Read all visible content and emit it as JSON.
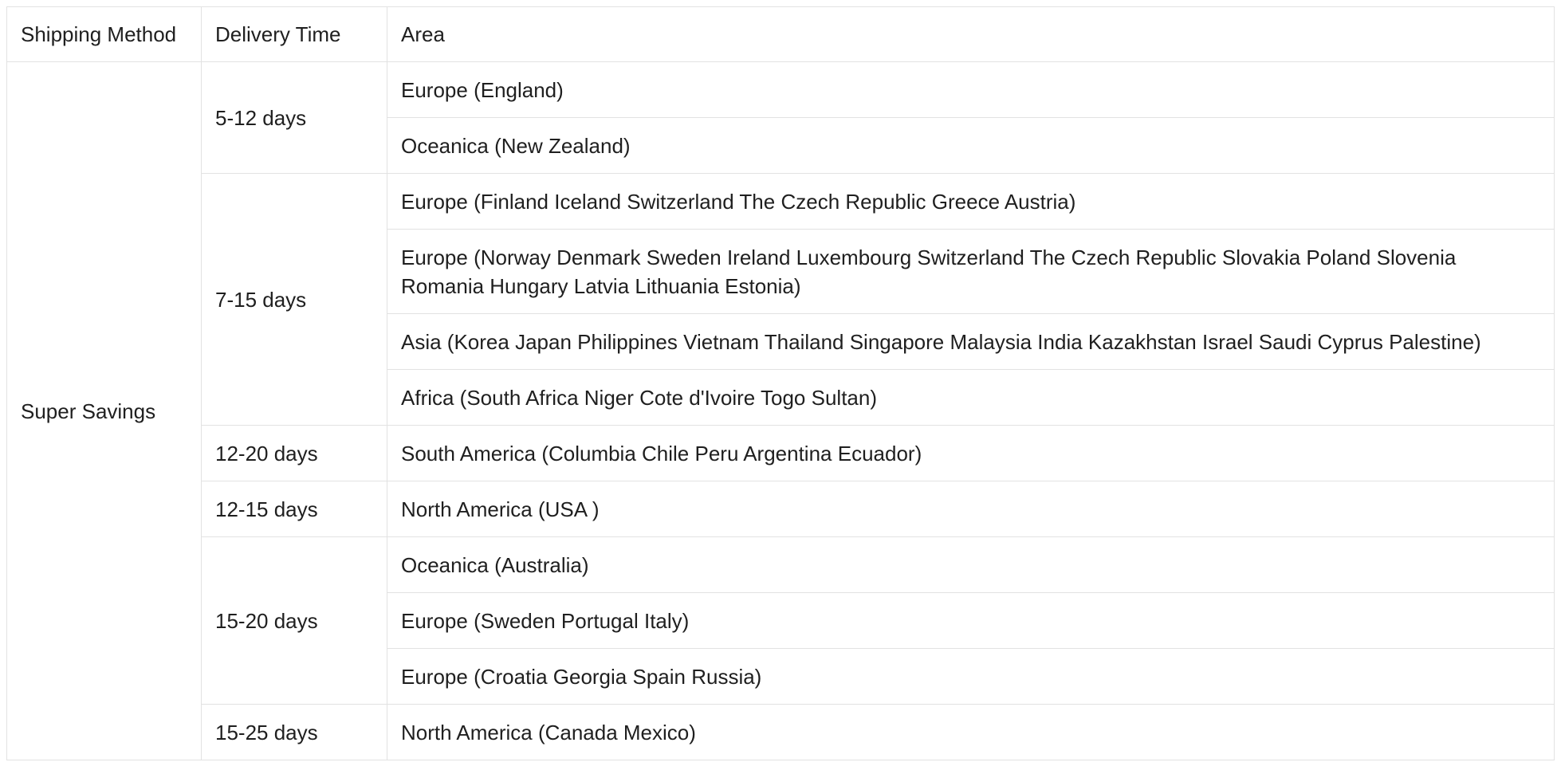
{
  "table": {
    "headers": [
      "Shipping Method",
      "Delivery Time",
      "Area"
    ],
    "method": "Super Savings",
    "groups": [
      {
        "time": "5-12 days",
        "areas": [
          "Europe (England)",
          "Oceanica (New Zealand)"
        ]
      },
      {
        "time": "7-15 days",
        "areas": [
          "Europe (Finland Iceland Switzerland The Czech Republic Greece Austria)",
          "Europe (Norway Denmark Sweden Ireland Luxembourg Switzerland The Czech Republic Slovakia Poland Slovenia Romania Hungary Latvia Lithuania Estonia)",
          "Asia (Korea Japan Philippines Vietnam Thailand Singapore Malaysia India Kazakhstan Israel Saudi Cyprus Palestine)",
          "Africa (South Africa Niger Cote d'Ivoire Togo Sultan)"
        ]
      },
      {
        "time": "12-20 days",
        "areas": [
          "South America (Columbia Chile Peru Argentina Ecuador)"
        ]
      },
      {
        "time": "12-15 days",
        "areas": [
          "North America (USA )"
        ]
      },
      {
        "time": "15-20 days",
        "areas": [
          "Oceanica (Australia)",
          "Europe (Sweden Portugal Italy)",
          "Europe (Croatia Georgia Spain Russia)"
        ]
      },
      {
        "time": "15-25 days",
        "areas": [
          "North America (Canada Mexico)"
        ]
      }
    ]
  }
}
